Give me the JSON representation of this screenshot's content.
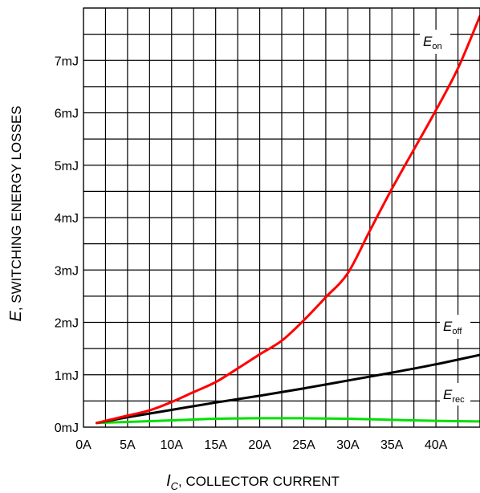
{
  "chart_data": {
    "type": "line",
    "xlabel": {
      "sym": "I",
      "sub": "C",
      "text": ", COLLECTOR CURRENT"
    },
    "ylabel": {
      "sym": "E",
      "text": ", SWITCHING ENERGY LOSSES"
    },
    "xlim": [
      0,
      45
    ],
    "ylim": [
      0,
      8
    ],
    "grid": true,
    "x_ticks": [
      "0A",
      "5A",
      "10A",
      "15A",
      "20A",
      "25A",
      "30A",
      "35A",
      "40A"
    ],
    "y_ticks": [
      "0mJ",
      "1mJ",
      "2mJ",
      "3mJ",
      "4mJ",
      "5mJ",
      "6mJ",
      "7mJ"
    ],
    "series": [
      {
        "name": "E_on",
        "label_main": "E",
        "label_sub": "on",
        "color": "#ff0000",
        "points": [
          [
            1.5,
            0.08
          ],
          [
            5,
            0.22
          ],
          [
            7.5,
            0.32
          ],
          [
            10,
            0.48
          ],
          [
            12.5,
            0.67
          ],
          [
            15,
            0.86
          ],
          [
            17.5,
            1.12
          ],
          [
            20,
            1.39
          ],
          [
            22.5,
            1.65
          ],
          [
            25,
            2.04
          ],
          [
            27.5,
            2.48
          ],
          [
            30,
            2.94
          ],
          [
            32.5,
            3.75
          ],
          [
            35,
            4.55
          ],
          [
            37.5,
            5.3
          ],
          [
            40,
            6.05
          ],
          [
            42.5,
            6.85
          ],
          [
            45,
            7.85
          ]
        ]
      },
      {
        "name": "E_off",
        "label_main": "E",
        "label_sub": "off",
        "color": "#000000",
        "points": [
          [
            1.5,
            0.08
          ],
          [
            5,
            0.19
          ],
          [
            10,
            0.33
          ],
          [
            15,
            0.47
          ],
          [
            20,
            0.6
          ],
          [
            25,
            0.74
          ],
          [
            30,
            0.89
          ],
          [
            35,
            1.04
          ],
          [
            40,
            1.2
          ],
          [
            45,
            1.38
          ]
        ]
      },
      {
        "name": "E_rec",
        "label_main": "E",
        "label_sub": "rec",
        "color": "#00e000",
        "points": [
          [
            1.5,
            0.08
          ],
          [
            5,
            0.1
          ],
          [
            10,
            0.13
          ],
          [
            15,
            0.16
          ],
          [
            20,
            0.17
          ],
          [
            25,
            0.17
          ],
          [
            30,
            0.16
          ],
          [
            35,
            0.14
          ],
          [
            40,
            0.12
          ],
          [
            45,
            0.11
          ]
        ]
      }
    ]
  }
}
